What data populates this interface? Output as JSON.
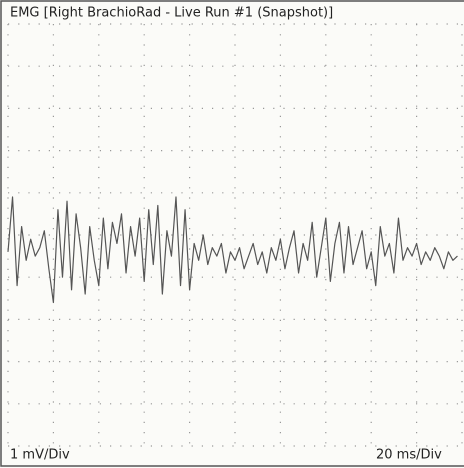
{
  "chart_data": {
    "type": "line",
    "title": "EMG [Right BrachioRad - Live Run #1 (Snapshot)]",
    "y_scale_label": "1 mV/Div",
    "x_scale_label": "20 ms/Div",
    "color": "#555555",
    "grid": true,
    "xlim": [
      0,
      200
    ],
    "ylim": [
      -5,
      5
    ],
    "xticks": [
      0,
      20,
      40,
      60,
      80,
      100,
      120,
      140,
      160,
      180,
      200
    ],
    "yticks": [
      -5,
      -4,
      -3,
      -2,
      -1,
      0,
      1,
      2,
      3,
      4,
      5
    ],
    "x": [
      0,
      2,
      4,
      6,
      8,
      10,
      12,
      14,
      16,
      18,
      20,
      22,
      24,
      26,
      28,
      30,
      32,
      34,
      36,
      38,
      40,
      42,
      44,
      46,
      48,
      50,
      52,
      54,
      56,
      58,
      60,
      62,
      64,
      66,
      68,
      70,
      72,
      74,
      76,
      78,
      80,
      82,
      84,
      86,
      88,
      90,
      92,
      94,
      96,
      98,
      100,
      102,
      104,
      106,
      108,
      110,
      112,
      114,
      116,
      118,
      120,
      122,
      124,
      126,
      128,
      130,
      132,
      134,
      136,
      138,
      140,
      142,
      144,
      146,
      148,
      150,
      152,
      154,
      156,
      158,
      160,
      162,
      164,
      166,
      168,
      170,
      172,
      174,
      176,
      178,
      180,
      182,
      184,
      186,
      188,
      190,
      192,
      194,
      196,
      198
    ],
    "values": [
      -0.4,
      0.9,
      -1.2,
      0.2,
      -0.6,
      -0.1,
      -0.5,
      -0.3,
      0.1,
      -0.8,
      -1.6,
      0.6,
      -1.0,
      0.8,
      -1.3,
      0.5,
      -0.3,
      -1.4,
      0.2,
      -0.6,
      -1.2,
      0.4,
      -0.8,
      0.3,
      -0.2,
      0.5,
      -0.9,
      0.2,
      -0.5,
      0.4,
      -1.1,
      0.6,
      -0.7,
      0.7,
      -1.4,
      0.1,
      -0.5,
      0.9,
      -1.2,
      0.6,
      -1.3,
      -0.2,
      -0.6,
      0.0,
      -0.7,
      -0.3,
      -0.5,
      -0.2,
      -0.9,
      -0.4,
      -0.6,
      -0.3,
      -0.8,
      -0.5,
      -0.2,
      -0.7,
      -0.4,
      -0.9,
      -0.3,
      -0.6,
      -0.1,
      -0.8,
      -0.3,
      0.1,
      -0.9,
      -0.2,
      -0.6,
      0.3,
      -1.0,
      -0.3,
      0.4,
      -1.1,
      -0.2,
      0.3,
      -0.9,
      0.2,
      -0.7,
      -0.3,
      0.1,
      -0.8,
      -0.4,
      -1.2,
      0.2,
      -0.5,
      -0.2,
      -0.9,
      0.4,
      -0.6,
      -0.3,
      -0.5,
      -0.2,
      -0.7,
      -0.4,
      -0.6,
      -0.3,
      -0.5,
      -0.8,
      -0.4,
      -0.6,
      -0.5
    ]
  }
}
